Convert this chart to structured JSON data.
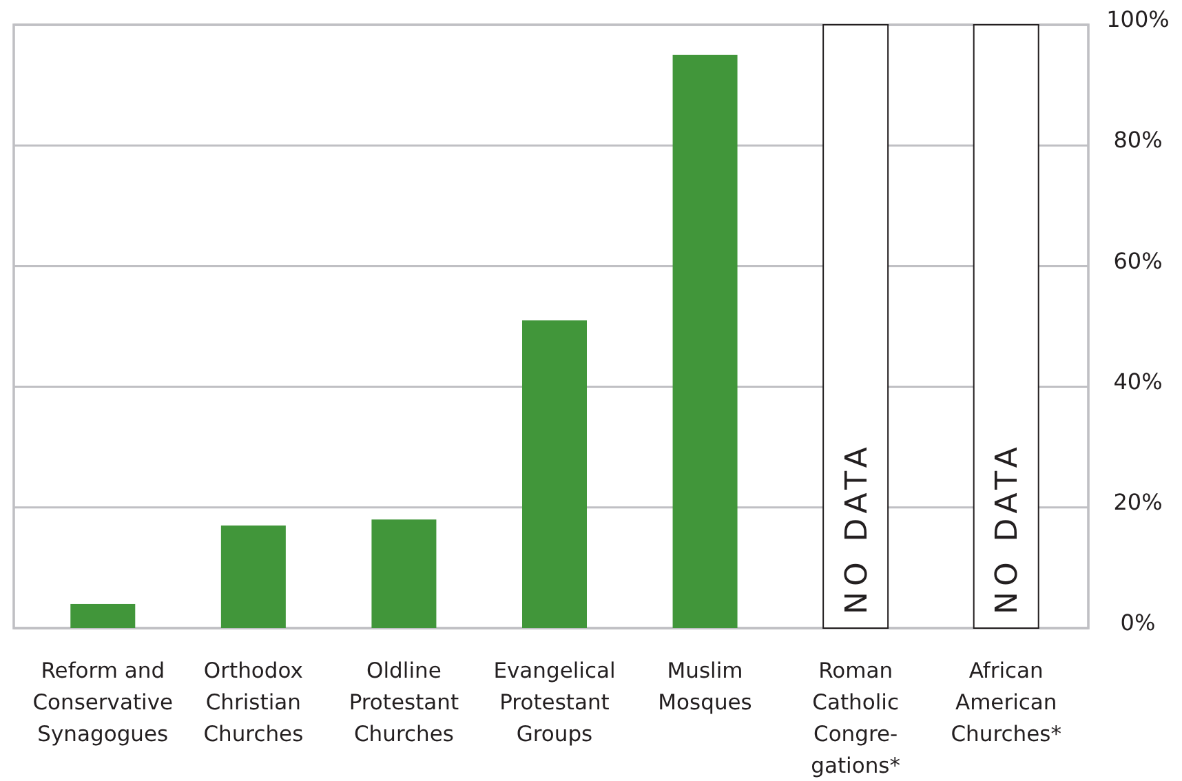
{
  "chart_data": {
    "type": "bar",
    "categories": [
      "Reform and\nConservative\nSynagogues",
      "Orthodox\nChristian\nChurches",
      "Oldline\nProtestant\nChurches",
      "Evangelical\nProtestant\nGroups",
      "Muslim\nMosques",
      "Roman\nCatholic\nCongre-\ngations*",
      "African\nAmerican\nChurches*"
    ],
    "values": [
      4,
      17,
      18,
      51,
      95,
      null,
      null
    ],
    "color": "#41963a",
    "ylim": [
      0,
      100
    ],
    "yticks": [
      {
        "value": 0,
        "label": "0%"
      },
      {
        "value": 20,
        "label": "20%"
      },
      {
        "value": 40,
        "label": "40%"
      },
      {
        "value": 60,
        "label": "60%"
      },
      {
        "value": 80,
        "label": "80%"
      },
      {
        "value": 100,
        "label": "100%"
      }
    ],
    "grid": "y",
    "bands": [
      {
        "axis": "x",
        "from": "Roman\nCatholic\nCongre-\ngations*",
        "to": "Roman\nCatholic\nCongre-\ngations*",
        "label": "NO DATA",
        "color": "#ffffff"
      },
      {
        "axis": "x",
        "from": "African\nAmerican\nChurches*",
        "to": "African\nAmerican\nChurches*",
        "label": "NO DATA",
        "color": "#ffffff"
      }
    ]
  }
}
